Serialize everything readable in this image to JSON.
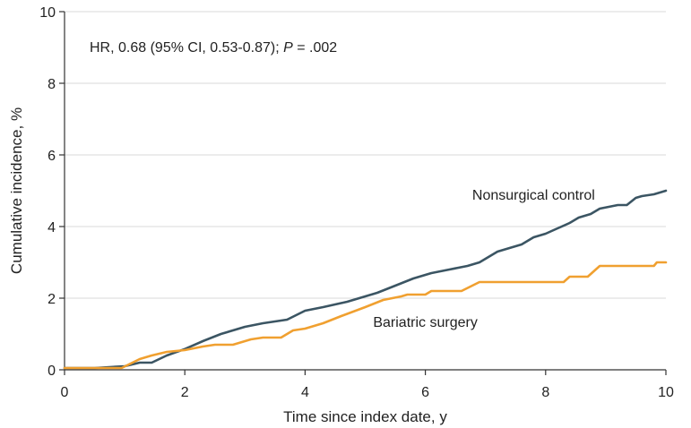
{
  "chart_data": {
    "type": "line",
    "annotation": {
      "prefix": "HR, 0.68 (95% CI, 0.53-0.87); ",
      "p_symbol": "P",
      "p_value": " = .002"
    },
    "xlabel": "Time since index date, y",
    "ylabel": "Cumulative incidence, %",
    "xlim": [
      0,
      10
    ],
    "ylim": [
      0,
      10
    ],
    "xticks": [
      0,
      2,
      4,
      6,
      8,
      10
    ],
    "yticks": [
      0,
      2,
      4,
      6,
      8,
      10
    ],
    "grid": "horizontal",
    "series": [
      {
        "name": "Nonsurgical control",
        "color": "#3b5563",
        "x": [
          0,
          0.5,
          1.0,
          1.25,
          1.45,
          1.7,
          2.0,
          2.3,
          2.6,
          3.0,
          3.3,
          3.7,
          4.0,
          4.3,
          4.7,
          5.0,
          5.2,
          5.5,
          5.8,
          6.0,
          6.1,
          6.4,
          6.7,
          6.9,
          7.0,
          7.2,
          7.4,
          7.6,
          7.8,
          8.0,
          8.2,
          8.4,
          8.55,
          8.75,
          8.9,
          9.2,
          9.35,
          9.5,
          9.6,
          9.8,
          10.0
        ],
        "y": [
          0.05,
          0.05,
          0.1,
          0.2,
          0.2,
          0.4,
          0.58,
          0.8,
          1.0,
          1.2,
          1.3,
          1.4,
          1.65,
          1.75,
          1.9,
          2.05,
          2.15,
          2.35,
          2.55,
          2.65,
          2.7,
          2.8,
          2.9,
          3.0,
          3.1,
          3.3,
          3.4,
          3.5,
          3.7,
          3.8,
          3.95,
          4.1,
          4.25,
          4.35,
          4.5,
          4.6,
          4.6,
          4.8,
          4.85,
          4.9,
          5.0
        ]
      },
      {
        "name": "Bariatric surgery",
        "color": "#f0a030",
        "x": [
          0,
          0.5,
          0.95,
          1.25,
          1.45,
          1.7,
          2.0,
          2.3,
          2.5,
          2.65,
          2.8,
          3.1,
          3.3,
          3.6,
          3.8,
          4.0,
          4.3,
          4.6,
          5.0,
          5.3,
          5.6,
          5.7,
          6.0,
          6.1,
          6.3,
          6.6,
          6.9,
          7.0,
          7.3,
          7.6,
          7.9,
          8.3,
          8.4,
          8.7,
          8.9,
          9.2,
          9.5,
          9.8,
          9.85,
          10.0
        ],
        "y": [
          0.05,
          0.05,
          0.05,
          0.3,
          0.4,
          0.5,
          0.55,
          0.65,
          0.7,
          0.7,
          0.7,
          0.85,
          0.9,
          0.9,
          1.1,
          1.15,
          1.3,
          1.5,
          1.75,
          1.95,
          2.05,
          2.1,
          2.1,
          2.2,
          2.2,
          2.2,
          2.45,
          2.45,
          2.45,
          2.45,
          2.45,
          2.45,
          2.6,
          2.6,
          2.9,
          2.9,
          2.9,
          2.9,
          3.0,
          3.0
        ]
      }
    ],
    "labels": [
      {
        "series": "Nonsurgical control",
        "text": "Nonsurgical control",
        "x": 7.8,
        "y": 4.75
      },
      {
        "series": "Bariatric surgery",
        "text": "Bariatric surgery",
        "x": 6.0,
        "y": 1.2
      }
    ]
  }
}
